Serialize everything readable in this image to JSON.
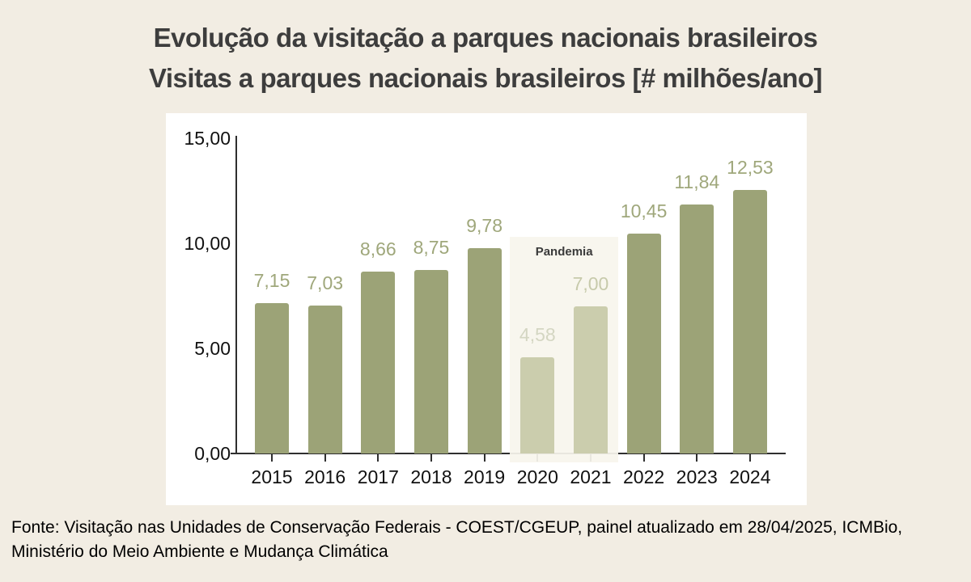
{
  "page": {
    "background": "#f2ede3",
    "title": "Evolução da visitação a parques nacionais brasileiros",
    "subtitle": "Visitas a parques nacionais brasileiros [# milhões/ano]",
    "source": "Fonte: Visitação nas Unidades de Conservação Federais - COEST/CGEUP, painel atualizado em 28/04/2025, ICMBio, Ministério do Meio Ambiente e Mudança Climática"
  },
  "chart_data": {
    "type": "bar",
    "title": "Evolução da visitação a parques nacionais brasileiros",
    "subtitle": "Visitas a parques nacionais brasileiros [# milhões/ano]",
    "xlabel": "",
    "ylabel": "",
    "ylim": [
      0,
      15
    ],
    "grid": false,
    "categories": [
      "2015",
      "2016",
      "2017",
      "2018",
      "2019",
      "2020",
      "2021",
      "2022",
      "2023",
      "2024"
    ],
    "values": [
      7.15,
      7.03,
      8.66,
      8.75,
      9.78,
      4.58,
      7.0,
      10.45,
      11.84,
      12.53
    ],
    "value_labels": [
      "7,15",
      "7,03",
      "8,66",
      "8,75",
      "9,78",
      "4,58",
      "7,00",
      "10,45",
      "11,84",
      "12,53"
    ],
    "yticks": [
      {
        "value": 0,
        "label": "0,00"
      },
      {
        "value": 5,
        "label": "5,00"
      },
      {
        "value": 10,
        "label": "10,00"
      },
      {
        "value": 15,
        "label": "15,00"
      }
    ],
    "bar_colors": [
      "#9ca377",
      "#9ca377",
      "#9ca377",
      "#9ca377",
      "#9ca377",
      "#cbcdad",
      "#cbcdad",
      "#9ca377",
      "#9ca377",
      "#9ca377"
    ],
    "label_colors": [
      "#9fa77b",
      "#9fa77b",
      "#9fa77b",
      "#9fa77b",
      "#9fa77b",
      "#d4d6c2",
      "#c7caab",
      "#9fa77b",
      "#9fa77b",
      "#9fa77b"
    ],
    "annotation": {
      "label": "Pandemia",
      "from_category": "2020",
      "to_category": "2021",
      "fill": "rgba(247,245,237,0.93)"
    },
    "colors": {
      "axis": "#2f2f2f",
      "panel_background": "#ffffff",
      "page_background": "#f2ede3",
      "title_text": "#3d3d3d"
    }
  }
}
